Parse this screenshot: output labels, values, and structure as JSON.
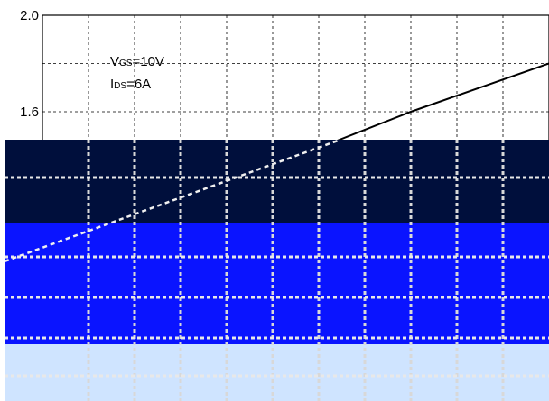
{
  "chart_data": {
    "type": "line",
    "y_ticks": [
      "2.0",
      "1.6"
    ],
    "y_tick_values": [
      2.0,
      1.6
    ],
    "ylim": [
      0.4,
      2.0
    ],
    "xlim": [
      0,
      11
    ],
    "x_gridlines": 11,
    "grid": true,
    "annotations": {
      "vgs_main": "V",
      "vgs_sub": "GS",
      "vgs_value": "=10V",
      "ids_main": "I",
      "ids_sub": "DS",
      "ids_value": "=6A"
    },
    "series": [
      {
        "x": [
          0,
          2,
          4,
          6,
          8,
          11
        ],
        "values": [
          0.9,
          1.08,
          1.26,
          1.45,
          1.6,
          1.8
        ],
        "color": "#000000"
      }
    ]
  },
  "colors": {
    "dark_band": "#000f3c",
    "blue_band": "#0a14ff",
    "light_band": "#cfe4ff"
  }
}
